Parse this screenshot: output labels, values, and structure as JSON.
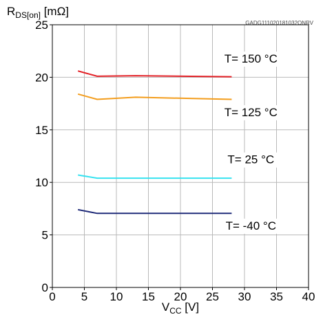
{
  "chart_data": {
    "type": "line",
    "doc_code": "GADG111020181032ONRV",
    "ylabel": {
      "main": "R",
      "sub": "DS[on]",
      "unit": " [mΩ]"
    },
    "xlabel": {
      "main": "V",
      "sub": "CC",
      "unit": " [V]"
    },
    "xlim": [
      0,
      40
    ],
    "ylim": [
      0,
      25
    ],
    "x_ticks": [
      "0",
      "5",
      "10",
      "15",
      "20",
      "25",
      "30",
      "35",
      "40"
    ],
    "y_ticks": [
      "0",
      "5",
      "10",
      "15",
      "20",
      "25"
    ],
    "grid": true,
    "series": [
      {
        "name": "T= 150 °C",
        "color": "#e31e24",
        "points": [
          [
            4,
            20.6
          ],
          [
            7,
            20.1
          ],
          [
            13,
            20.15
          ],
          [
            28,
            20.05
          ]
        ]
      },
      {
        "name": "T= 125 °C",
        "color": "#f39c1a",
        "points": [
          [
            4,
            18.4
          ],
          [
            7,
            17.9
          ],
          [
            13,
            18.1
          ],
          [
            28,
            17.9
          ]
        ]
      },
      {
        "name": "T= 25 °C",
        "color": "#35e2f0",
        "points": [
          [
            4,
            10.7
          ],
          [
            7,
            10.4
          ],
          [
            13,
            10.4
          ],
          [
            28,
            10.4
          ]
        ]
      },
      {
        "name": "T= -40 °C",
        "color": "#1f2a78",
        "points": [
          [
            4,
            7.4
          ],
          [
            7,
            7.05
          ],
          [
            13,
            7.05
          ],
          [
            28,
            7.05
          ]
        ]
      }
    ]
  }
}
